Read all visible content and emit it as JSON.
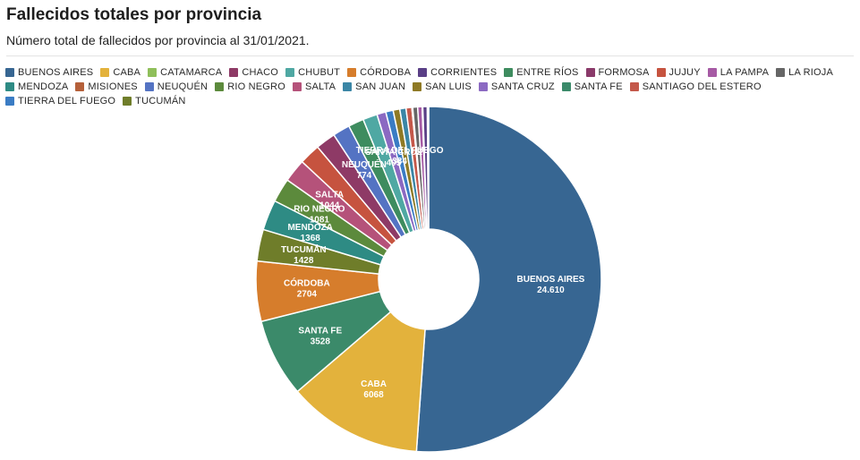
{
  "header": {
    "title": "Fallecidos totales por provincia",
    "subtitle": "Número total de fallecidos por provincia al 31/01/2021."
  },
  "legend": [
    {
      "label": "BUENOS AIRES",
      "color": "#376692"
    },
    {
      "label": "CABA",
      "color": "#e3b23c"
    },
    {
      "label": "CATAMARCA",
      "color": "#8fbf5a"
    },
    {
      "label": "CHACO",
      "color": "#8e3a66"
    },
    {
      "label": "CHUBUT",
      "color": "#4fa8a3"
    },
    {
      "label": "CÓRDOBA",
      "color": "#d67d2c"
    },
    {
      "label": "CORRIENTES",
      "color": "#5a3f86"
    },
    {
      "label": "ENTRE RÍOS",
      "color": "#3e8c5f"
    },
    {
      "label": "FORMOSA",
      "color": "#8a3a6a"
    },
    {
      "label": "JUJUY",
      "color": "#c6533f"
    },
    {
      "label": "LA PAMPA",
      "color": "#a65aa4"
    },
    {
      "label": "LA RIOJA",
      "color": "#666666"
    },
    {
      "label": "MENDOZA",
      "color": "#2e8b84"
    },
    {
      "label": "MISIONES",
      "color": "#b5603a"
    },
    {
      "label": "NEUQUÉN",
      "color": "#5473c3"
    },
    {
      "label": "RIO NEGRO",
      "color": "#5c8a3c"
    },
    {
      "label": "SALTA",
      "color": "#b5527a"
    },
    {
      "label": "SAN JUAN",
      "color": "#3b86a6"
    },
    {
      "label": "SAN LUIS",
      "color": "#8f7a25"
    },
    {
      "label": "SANTA CRUZ",
      "color": "#8b69c2"
    },
    {
      "label": "SANTA FE",
      "color": "#3b8a6a"
    },
    {
      "label": "SANTIAGO DEL ESTERO",
      "color": "#c4584a"
    },
    {
      "label": "TIERRA DEL FUEGO",
      "color": "#3a7cc4"
    },
    {
      "label": "TUCUMÁN",
      "color": "#6f7d2a"
    }
  ],
  "chart_data": {
    "type": "pie",
    "donut": true,
    "slices": [
      {
        "label": "BUENOS AIRES",
        "value": 24610,
        "display": "24.610",
        "color": "#376692"
      },
      {
        "label": "CABA",
        "value": 6068,
        "display": "6068",
        "color": "#e3b23c"
      },
      {
        "label": "SANTA FE",
        "value": 3528,
        "display": "3528",
        "color": "#3b8a6a"
      },
      {
        "label": "CÓRDOBA",
        "value": 2704,
        "display": "2704",
        "color": "#d67d2c"
      },
      {
        "label": "TUCUMÁN",
        "value": 1428,
        "display": "1428",
        "color": "#6f7d2a"
      },
      {
        "label": "MENDOZA",
        "value": 1368,
        "display": "1368",
        "color": "#2e8b84"
      },
      {
        "label": "RIO NEGRO",
        "value": 1081,
        "display": "1081",
        "color": "#5c8a3c"
      },
      {
        "label": "SALTA",
        "value": 1044,
        "display": "1044",
        "color": "#b5527a"
      },
      {
        "label": "JUJUY",
        "value": 950,
        "display": "",
        "color": "#c6533f"
      },
      {
        "label": "CHACO",
        "value": 900,
        "display": "",
        "color": "#8e3a66"
      },
      {
        "label": "NEUQUÉN",
        "value": 774,
        "display": "774",
        "color": "#5473c3"
      },
      {
        "label": "ENTRE RÍOS",
        "value": 700,
        "display": "",
        "color": "#3e8c5f"
      },
      {
        "label": "CHUBUT",
        "value": 650,
        "display": "",
        "color": "#4fa8a3"
      },
      {
        "label": "SANTA CRUZ",
        "value": 405,
        "display": "405",
        "color": "#8b69c2"
      },
      {
        "label": "TIERRA DEL FUEGO",
        "value": 334,
        "display": "334",
        "color": "#3a7cc4"
      },
      {
        "label": "SAN LUIS",
        "value": 300,
        "display": "",
        "color": "#8f7a25"
      },
      {
        "label": "SAN JUAN",
        "value": 280,
        "display": "",
        "color": "#3b86a6"
      },
      {
        "label": "SANTIAGO DEL ESTERO",
        "value": 260,
        "display": "",
        "color": "#c4584a"
      },
      {
        "label": "MISIONES",
        "value": 40,
        "display": "",
        "color": "#b5603a"
      },
      {
        "label": "LA RIOJA",
        "value": 220,
        "display": "",
        "color": "#666666"
      },
      {
        "label": "LA PAMPA",
        "value": 200,
        "display": "",
        "color": "#a65aa4"
      },
      {
        "label": "FORMOSA",
        "value": 30,
        "display": "",
        "color": "#8a3a6a"
      },
      {
        "label": "CORRIENTES",
        "value": 200,
        "display": "",
        "color": "#5a3f86"
      },
      {
        "label": "CATAMARCA",
        "value": 60,
        "display": "",
        "color": "#8fbf5a"
      }
    ]
  }
}
